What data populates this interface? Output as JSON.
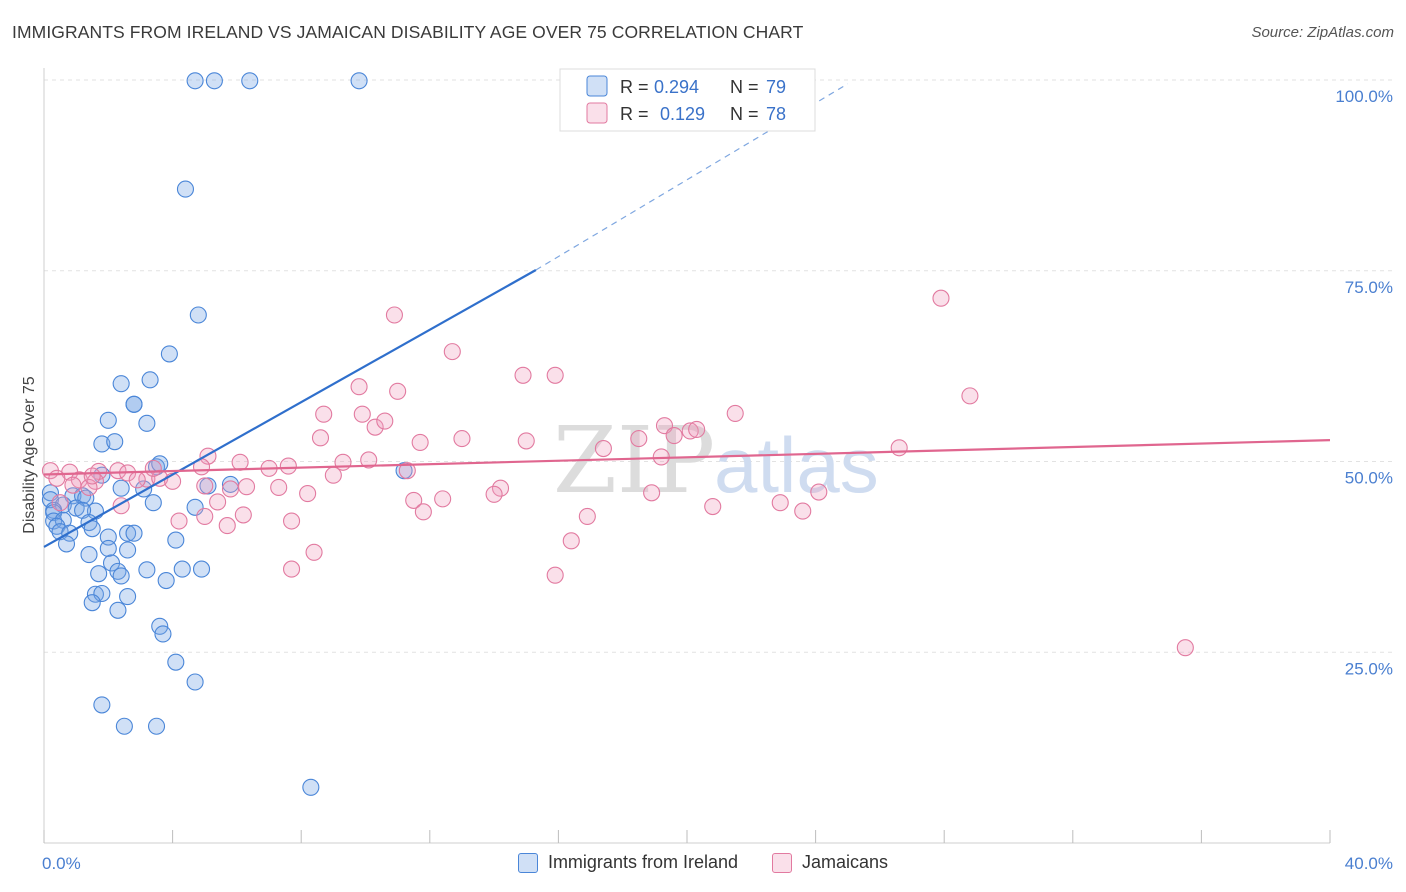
{
  "title": "IMMIGRANTS FROM IRELAND VS JAMAICAN DISABILITY AGE OVER 75 CORRELATION CHART",
  "source": "Source: ZipAtlas.com",
  "colors": {
    "blue": "#4a86d8",
    "blue_fill": "rgba(120,165,230,0.35)",
    "pink": "#e27aa0",
    "pink_fill": "rgba(240,160,190,0.32)",
    "blue_line": "#2f6fcc",
    "pink_line": "#e0668f",
    "tick_color": "#4a7fd0",
    "watermark": "#dcdcdc"
  },
  "legend": {
    "r_label": "R =",
    "n_label": "N =",
    "rows": [
      {
        "r": "0.294",
        "n": "79"
      },
      {
        "r": "0.129",
        "n": "78"
      }
    ]
  },
  "watermark": {
    "zip": "ZIP",
    "atlas": "atlas"
  },
  "chart_data": {
    "type": "scatter",
    "title": "IMMIGRANTS FROM IRELAND VS JAMAICAN DISABILITY AGE OVER 75 CORRELATION CHART",
    "xlabel": "",
    "ylabel": "Disability Age Over 75",
    "xlim": [
      0,
      40
    ],
    "ylim": [
      0,
      104
    ],
    "x_tick_labels": [
      "0.0%",
      "40.0%"
    ],
    "y_ticks": [
      25,
      50,
      75,
      100
    ],
    "y_tick_labels": [
      "25.0%",
      "50.0%",
      "75.0%",
      "100.0%"
    ],
    "grid": true,
    "series": [
      {
        "name": "Immigrants from Ireland",
        "color": "blue",
        "R": 0.294,
        "N": 79,
        "trend": {
          "x0": 0,
          "y0": 38.8,
          "x1": 15.3,
          "y1": 75.1,
          "dash_to_x": 25.0,
          "dash_to_y": 99.5
        },
        "points": [
          [
            4.7,
            99.9
          ],
          [
            5.3,
            99.9
          ],
          [
            6.4,
            99.9
          ],
          [
            9.8,
            99.9
          ],
          [
            4.4,
            85.7
          ],
          [
            4.8,
            69.2
          ],
          [
            3.9,
            64.1
          ],
          [
            3.3,
            60.7
          ],
          [
            2.4,
            60.2
          ],
          [
            2.8,
            57.5
          ],
          [
            2.8,
            57.5
          ],
          [
            2.0,
            55.4
          ],
          [
            3.2,
            55.0
          ],
          [
            1.8,
            52.3
          ],
          [
            2.2,
            52.6
          ],
          [
            3.5,
            49.3
          ],
          [
            3.6,
            49.7
          ],
          [
            11.2,
            48.8
          ],
          [
            1.8,
            48.2
          ],
          [
            2.4,
            46.5
          ],
          [
            3.1,
            46.4
          ],
          [
            5.1,
            46.8
          ],
          [
            5.8,
            47.0
          ],
          [
            0.2,
            45.9
          ],
          [
            0.9,
            45.5
          ],
          [
            1.2,
            45.5
          ],
          [
            1.3,
            45.2
          ],
          [
            0.2,
            45.0
          ],
          [
            0.6,
            44.3
          ],
          [
            1.0,
            43.9
          ],
          [
            0.3,
            43.6
          ],
          [
            0.3,
            43.3
          ],
          [
            1.6,
            43.5
          ],
          [
            3.4,
            44.6
          ],
          [
            4.7,
            44.0
          ],
          [
            1.2,
            43.6
          ],
          [
            0.3,
            42.2
          ],
          [
            0.6,
            42.3
          ],
          [
            0.4,
            41.5
          ],
          [
            1.4,
            42.0
          ],
          [
            1.5,
            41.2
          ],
          [
            0.5,
            40.8
          ],
          [
            0.8,
            40.6
          ],
          [
            2.6,
            40.6
          ],
          [
            2.8,
            40.6
          ],
          [
            2.0,
            40.1
          ],
          [
            0.7,
            39.2
          ],
          [
            4.1,
            39.7
          ],
          [
            1.4,
            37.8
          ],
          [
            2.0,
            38.6
          ],
          [
            2.6,
            38.4
          ],
          [
            2.1,
            36.7
          ],
          [
            1.7,
            35.3
          ],
          [
            2.3,
            35.6
          ],
          [
            2.4,
            35.0
          ],
          [
            3.2,
            35.8
          ],
          [
            4.3,
            35.9
          ],
          [
            4.9,
            35.9
          ],
          [
            3.8,
            34.4
          ],
          [
            1.6,
            32.6
          ],
          [
            1.8,
            32.7
          ],
          [
            2.6,
            32.3
          ],
          [
            1.5,
            31.5
          ],
          [
            2.3,
            30.5
          ],
          [
            3.6,
            28.4
          ],
          [
            3.7,
            27.4
          ],
          [
            4.1,
            23.7
          ],
          [
            4.7,
            21.1
          ],
          [
            1.8,
            18.1
          ],
          [
            2.5,
            15.3
          ],
          [
            3.5,
            15.3
          ],
          [
            8.3,
            7.3
          ]
        ]
      },
      {
        "name": "Jamaicans",
        "color": "pink",
        "R": 0.129,
        "N": 78,
        "trend": {
          "x0": 0,
          "y0": 48.3,
          "x1": 40,
          "y1": 52.8
        },
        "points": [
          [
            27.9,
            71.4
          ],
          [
            10.9,
            69.2
          ],
          [
            12.7,
            64.4
          ],
          [
            14.9,
            61.3
          ],
          [
            15.9,
            61.3
          ],
          [
            9.8,
            59.8
          ],
          [
            11.0,
            59.2
          ],
          [
            28.8,
            58.6
          ],
          [
            21.5,
            56.3
          ],
          [
            8.7,
            56.2
          ],
          [
            9.9,
            56.2
          ],
          [
            10.3,
            54.5
          ],
          [
            10.6,
            55.3
          ],
          [
            19.3,
            54.7
          ],
          [
            20.1,
            54.0
          ],
          [
            20.3,
            54.2
          ],
          [
            19.6,
            53.4
          ],
          [
            18.5,
            53.0
          ],
          [
            8.6,
            53.1
          ],
          [
            13.0,
            53.0
          ],
          [
            15.0,
            52.7
          ],
          [
            11.7,
            52.5
          ],
          [
            17.4,
            51.7
          ],
          [
            26.6,
            51.8
          ],
          [
            19.2,
            50.6
          ],
          [
            5.1,
            50.7
          ],
          [
            6.1,
            49.9
          ],
          [
            9.3,
            49.9
          ],
          [
            10.1,
            50.2
          ],
          [
            7.0,
            49.1
          ],
          [
            7.6,
            49.4
          ],
          [
            0.2,
            48.8
          ],
          [
            0.8,
            48.6
          ],
          [
            1.7,
            48.7
          ],
          [
            2.3,
            48.8
          ],
          [
            2.6,
            48.5
          ],
          [
            3.2,
            47.7
          ],
          [
            3.6,
            47.8
          ],
          [
            4.0,
            47.4
          ],
          [
            0.4,
            47.8
          ],
          [
            1.1,
            47.6
          ],
          [
            1.6,
            47.4
          ],
          [
            2.9,
            47.6
          ],
          [
            5.0,
            46.8
          ],
          [
            5.8,
            46.4
          ],
          [
            6.3,
            46.7
          ],
          [
            7.3,
            46.6
          ],
          [
            11.3,
            48.8
          ],
          [
            9.0,
            48.2
          ],
          [
            4.9,
            49.3
          ],
          [
            3.4,
            49.1
          ],
          [
            0.9,
            46.9
          ],
          [
            1.4,
            46.6
          ],
          [
            1.5,
            48.1
          ],
          [
            0.5,
            44.6
          ],
          [
            2.4,
            44.2
          ],
          [
            5.4,
            44.7
          ],
          [
            8.2,
            45.8
          ],
          [
            11.5,
            44.9
          ],
          [
            12.4,
            45.1
          ],
          [
            14.2,
            46.5
          ],
          [
            14.0,
            45.7
          ],
          [
            18.9,
            45.9
          ],
          [
            24.1,
            46.0
          ],
          [
            22.9,
            44.6
          ],
          [
            23.6,
            43.5
          ],
          [
            20.8,
            44.1
          ],
          [
            11.8,
            43.4
          ],
          [
            16.9,
            42.8
          ],
          [
            6.2,
            43.0
          ],
          [
            4.2,
            42.2
          ],
          [
            5.0,
            42.8
          ],
          [
            5.7,
            41.6
          ],
          [
            7.7,
            42.2
          ],
          [
            16.4,
            39.6
          ],
          [
            8.4,
            38.1
          ],
          [
            7.7,
            35.9
          ],
          [
            15.9,
            35.1
          ],
          [
            35.5,
            25.6
          ]
        ]
      }
    ]
  }
}
